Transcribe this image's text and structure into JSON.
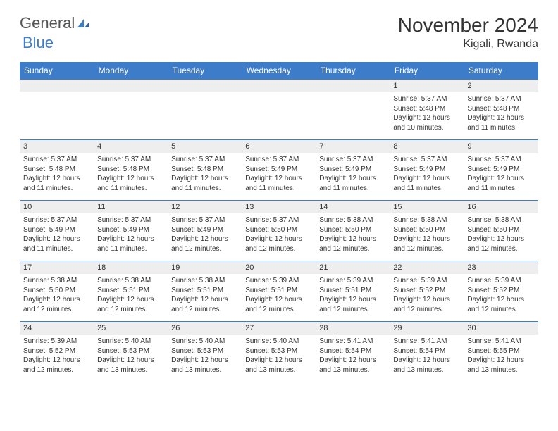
{
  "logo": {
    "part1": "General",
    "part2": "Blue"
  },
  "header": {
    "month": "November 2024",
    "location": "Kigali, Rwanda"
  },
  "weekdays": [
    "Sunday",
    "Monday",
    "Tuesday",
    "Wednesday",
    "Thursday",
    "Friday",
    "Saturday"
  ],
  "colors": {
    "accent": "#3d7cc9",
    "headerBg": "#3d7cc9",
    "dayNumBg": "#eeeeee"
  },
  "weeks": [
    [
      {
        "n": "",
        "lines": []
      },
      {
        "n": "",
        "lines": []
      },
      {
        "n": "",
        "lines": []
      },
      {
        "n": "",
        "lines": []
      },
      {
        "n": "",
        "lines": []
      },
      {
        "n": "1",
        "lines": [
          "Sunrise: 5:37 AM",
          "Sunset: 5:48 PM",
          "Daylight: 12 hours and 10 minutes."
        ]
      },
      {
        "n": "2",
        "lines": [
          "Sunrise: 5:37 AM",
          "Sunset: 5:48 PM",
          "Daylight: 12 hours and 11 minutes."
        ]
      }
    ],
    [
      {
        "n": "3",
        "lines": [
          "Sunrise: 5:37 AM",
          "Sunset: 5:48 PM",
          "Daylight: 12 hours and 11 minutes."
        ]
      },
      {
        "n": "4",
        "lines": [
          "Sunrise: 5:37 AM",
          "Sunset: 5:48 PM",
          "Daylight: 12 hours and 11 minutes."
        ]
      },
      {
        "n": "5",
        "lines": [
          "Sunrise: 5:37 AM",
          "Sunset: 5:48 PM",
          "Daylight: 12 hours and 11 minutes."
        ]
      },
      {
        "n": "6",
        "lines": [
          "Sunrise: 5:37 AM",
          "Sunset: 5:49 PM",
          "Daylight: 12 hours and 11 minutes."
        ]
      },
      {
        "n": "7",
        "lines": [
          "Sunrise: 5:37 AM",
          "Sunset: 5:49 PM",
          "Daylight: 12 hours and 11 minutes."
        ]
      },
      {
        "n": "8",
        "lines": [
          "Sunrise: 5:37 AM",
          "Sunset: 5:49 PM",
          "Daylight: 12 hours and 11 minutes."
        ]
      },
      {
        "n": "9",
        "lines": [
          "Sunrise: 5:37 AM",
          "Sunset: 5:49 PM",
          "Daylight: 12 hours and 11 minutes."
        ]
      }
    ],
    [
      {
        "n": "10",
        "lines": [
          "Sunrise: 5:37 AM",
          "Sunset: 5:49 PM",
          "Daylight: 12 hours and 11 minutes."
        ]
      },
      {
        "n": "11",
        "lines": [
          "Sunrise: 5:37 AM",
          "Sunset: 5:49 PM",
          "Daylight: 12 hours and 11 minutes."
        ]
      },
      {
        "n": "12",
        "lines": [
          "Sunrise: 5:37 AM",
          "Sunset: 5:49 PM",
          "Daylight: 12 hours and 12 minutes."
        ]
      },
      {
        "n": "13",
        "lines": [
          "Sunrise: 5:37 AM",
          "Sunset: 5:50 PM",
          "Daylight: 12 hours and 12 minutes."
        ]
      },
      {
        "n": "14",
        "lines": [
          "Sunrise: 5:38 AM",
          "Sunset: 5:50 PM",
          "Daylight: 12 hours and 12 minutes."
        ]
      },
      {
        "n": "15",
        "lines": [
          "Sunrise: 5:38 AM",
          "Sunset: 5:50 PM",
          "Daylight: 12 hours and 12 minutes."
        ]
      },
      {
        "n": "16",
        "lines": [
          "Sunrise: 5:38 AM",
          "Sunset: 5:50 PM",
          "Daylight: 12 hours and 12 minutes."
        ]
      }
    ],
    [
      {
        "n": "17",
        "lines": [
          "Sunrise: 5:38 AM",
          "Sunset: 5:50 PM",
          "Daylight: 12 hours and 12 minutes."
        ]
      },
      {
        "n": "18",
        "lines": [
          "Sunrise: 5:38 AM",
          "Sunset: 5:51 PM",
          "Daylight: 12 hours and 12 minutes."
        ]
      },
      {
        "n": "19",
        "lines": [
          "Sunrise: 5:38 AM",
          "Sunset: 5:51 PM",
          "Daylight: 12 hours and 12 minutes."
        ]
      },
      {
        "n": "20",
        "lines": [
          "Sunrise: 5:39 AM",
          "Sunset: 5:51 PM",
          "Daylight: 12 hours and 12 minutes."
        ]
      },
      {
        "n": "21",
        "lines": [
          "Sunrise: 5:39 AM",
          "Sunset: 5:51 PM",
          "Daylight: 12 hours and 12 minutes."
        ]
      },
      {
        "n": "22",
        "lines": [
          "Sunrise: 5:39 AM",
          "Sunset: 5:52 PM",
          "Daylight: 12 hours and 12 minutes."
        ]
      },
      {
        "n": "23",
        "lines": [
          "Sunrise: 5:39 AM",
          "Sunset: 5:52 PM",
          "Daylight: 12 hours and 12 minutes."
        ]
      }
    ],
    [
      {
        "n": "24",
        "lines": [
          "Sunrise: 5:39 AM",
          "Sunset: 5:52 PM",
          "Daylight: 12 hours and 12 minutes."
        ]
      },
      {
        "n": "25",
        "lines": [
          "Sunrise: 5:40 AM",
          "Sunset: 5:53 PM",
          "Daylight: 12 hours and 13 minutes."
        ]
      },
      {
        "n": "26",
        "lines": [
          "Sunrise: 5:40 AM",
          "Sunset: 5:53 PM",
          "Daylight: 12 hours and 13 minutes."
        ]
      },
      {
        "n": "27",
        "lines": [
          "Sunrise: 5:40 AM",
          "Sunset: 5:53 PM",
          "Daylight: 12 hours and 13 minutes."
        ]
      },
      {
        "n": "28",
        "lines": [
          "Sunrise: 5:41 AM",
          "Sunset: 5:54 PM",
          "Daylight: 12 hours and 13 minutes."
        ]
      },
      {
        "n": "29",
        "lines": [
          "Sunrise: 5:41 AM",
          "Sunset: 5:54 PM",
          "Daylight: 12 hours and 13 minutes."
        ]
      },
      {
        "n": "30",
        "lines": [
          "Sunrise: 5:41 AM",
          "Sunset: 5:55 PM",
          "Daylight: 12 hours and 13 minutes."
        ]
      }
    ]
  ]
}
